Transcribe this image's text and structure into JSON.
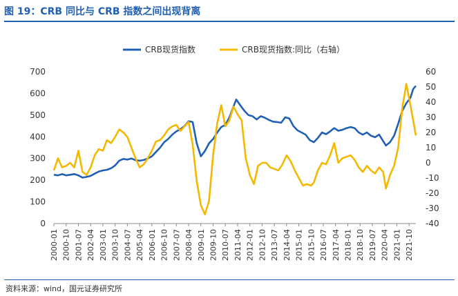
{
  "header": {
    "title": "图 19：CRB 同比与 CRB 指数之间出现背离"
  },
  "footer": {
    "source": "资料来源：wind，国元证券研究所"
  },
  "colors": {
    "title_blue": "#1f5fb4",
    "series_index": "#1f5fb4",
    "series_yoy": "#f5b800"
  },
  "chart_data": {
    "type": "line",
    "legend_position": "top",
    "grid": false,
    "x_tick_labels": [
      "2000-01",
      "2000-10",
      "2001-07",
      "2002-04",
      "2003-01",
      "2003-10",
      "2004-07",
      "2005-04",
      "2006-01",
      "2006-10",
      "2007-07",
      "2008-04",
      "2009-01",
      "2009-10",
      "2010-07",
      "2011-04",
      "2012-01",
      "2012-10",
      "2013-07",
      "2014-04",
      "2015-01",
      "2015-10",
      "2016-07",
      "2017-04",
      "2018-01",
      "2018-10",
      "2019-07",
      "2020-04",
      "2021-01",
      "2021-10"
    ],
    "x_range": [
      "2000-01",
      "2022-03"
    ],
    "y_left": {
      "min": 0,
      "max": 700,
      "ticks": [
        0,
        100,
        200,
        300,
        400,
        500,
        600,
        700
      ]
    },
    "y_right": {
      "min": -40,
      "max": 60,
      "ticks": [
        -40,
        -30,
        -20,
        -10,
        0,
        10,
        20,
        30,
        40,
        50,
        60
      ]
    },
    "series": [
      {
        "name": "CRB现货指数",
        "axis": "left",
        "color": "#1f5fb4",
        "points": [
          [
            "2000-01",
            225
          ],
          [
            "2000-04",
            222
          ],
          [
            "2000-07",
            228
          ],
          [
            "2000-10",
            222
          ],
          [
            "2001-01",
            225
          ],
          [
            "2001-04",
            228
          ],
          [
            "2001-07",
            222
          ],
          [
            "2001-10",
            212
          ],
          [
            "2002-01",
            215
          ],
          [
            "2002-04",
            220
          ],
          [
            "2002-07",
            230
          ],
          [
            "2002-10",
            240
          ],
          [
            "2003-01",
            245
          ],
          [
            "2003-04",
            248
          ],
          [
            "2003-07",
            255
          ],
          [
            "2003-10",
            268
          ],
          [
            "2004-01",
            290
          ],
          [
            "2004-04",
            298
          ],
          [
            "2004-07",
            295
          ],
          [
            "2004-10",
            300
          ],
          [
            "2005-01",
            292
          ],
          [
            "2005-04",
            290
          ],
          [
            "2005-07",
            293
          ],
          [
            "2005-10",
            300
          ],
          [
            "2006-01",
            310
          ],
          [
            "2006-04",
            330
          ],
          [
            "2006-07",
            350
          ],
          [
            "2006-10",
            375
          ],
          [
            "2007-01",
            390
          ],
          [
            "2007-04",
            410
          ],
          [
            "2007-07",
            425
          ],
          [
            "2007-10",
            435
          ],
          [
            "2008-01",
            450
          ],
          [
            "2008-04",
            472
          ],
          [
            "2008-07",
            468
          ],
          [
            "2008-10",
            370
          ],
          [
            "2009-01",
            310
          ],
          [
            "2009-04",
            335
          ],
          [
            "2009-07",
            370
          ],
          [
            "2009-10",
            390
          ],
          [
            "2010-01",
            420
          ],
          [
            "2010-04",
            445
          ],
          [
            "2010-07",
            455
          ],
          [
            "2010-10",
            490
          ],
          [
            "2011-01",
            540
          ],
          [
            "2011-03",
            572
          ],
          [
            "2011-06",
            545
          ],
          [
            "2011-09",
            520
          ],
          [
            "2011-12",
            500
          ],
          [
            "2012-03",
            495
          ],
          [
            "2012-06",
            480
          ],
          [
            "2012-09",
            495
          ],
          [
            "2012-12",
            488
          ],
          [
            "2013-03",
            478
          ],
          [
            "2013-06",
            470
          ],
          [
            "2013-09",
            468
          ],
          [
            "2013-12",
            465
          ],
          [
            "2014-03",
            490
          ],
          [
            "2014-06",
            485
          ],
          [
            "2014-09",
            450
          ],
          [
            "2014-12",
            430
          ],
          [
            "2015-03",
            420
          ],
          [
            "2015-06",
            410
          ],
          [
            "2015-09",
            385
          ],
          [
            "2015-12",
            375
          ],
          [
            "2016-03",
            395
          ],
          [
            "2016-06",
            420
          ],
          [
            "2016-09",
            412
          ],
          [
            "2016-12",
            425
          ],
          [
            "2017-03",
            440
          ],
          [
            "2017-06",
            428
          ],
          [
            "2017-09",
            432
          ],
          [
            "2017-12",
            440
          ],
          [
            "2018-03",
            445
          ],
          [
            "2018-06",
            440
          ],
          [
            "2018-09",
            420
          ],
          [
            "2018-12",
            410
          ],
          [
            "2019-03",
            420
          ],
          [
            "2019-06",
            405
          ],
          [
            "2019-09",
            398
          ],
          [
            "2019-12",
            410
          ],
          [
            "2020-03",
            380
          ],
          [
            "2020-05",
            360
          ],
          [
            "2020-08",
            375
          ],
          [
            "2020-11",
            405
          ],
          [
            "2021-02",
            460
          ],
          [
            "2021-05",
            520
          ],
          [
            "2021-08",
            555
          ],
          [
            "2021-11",
            580
          ],
          [
            "2022-01",
            620
          ],
          [
            "2022-03",
            635
          ]
        ]
      },
      {
        "name": "CRB现货指数:同比（右轴）",
        "axis": "right",
        "color": "#f5b800",
        "points": [
          [
            "2000-01",
            -5
          ],
          [
            "2000-04",
            3
          ],
          [
            "2000-07",
            -3
          ],
          [
            "2000-10",
            -2
          ],
          [
            "2001-01",
            0
          ],
          [
            "2001-04",
            -3
          ],
          [
            "2001-07",
            8
          ],
          [
            "2001-10",
            -6
          ],
          [
            "2002-01",
            -8
          ],
          [
            "2002-04",
            -3
          ],
          [
            "2002-07",
            5
          ],
          [
            "2002-10",
            9
          ],
          [
            "2003-01",
            8
          ],
          [
            "2003-04",
            15
          ],
          [
            "2003-07",
            13
          ],
          [
            "2003-10",
            17
          ],
          [
            "2004-01",
            22
          ],
          [
            "2004-04",
            20
          ],
          [
            "2004-07",
            17
          ],
          [
            "2004-10",
            10
          ],
          [
            "2005-01",
            3
          ],
          [
            "2005-04",
            -3
          ],
          [
            "2005-07",
            -1
          ],
          [
            "2005-10",
            3
          ],
          [
            "2006-01",
            8
          ],
          [
            "2006-04",
            14
          ],
          [
            "2006-07",
            15
          ],
          [
            "2006-10",
            18
          ],
          [
            "2007-01",
            22
          ],
          [
            "2007-04",
            24
          ],
          [
            "2007-07",
            25
          ],
          [
            "2007-10",
            21
          ],
          [
            "2008-01",
            24
          ],
          [
            "2008-04",
            27
          ],
          [
            "2008-07",
            12
          ],
          [
            "2008-10",
            -12
          ],
          [
            "2009-01",
            -28
          ],
          [
            "2009-04",
            -34
          ],
          [
            "2009-07",
            -25
          ],
          [
            "2009-10",
            5
          ],
          [
            "2010-01",
            26
          ],
          [
            "2010-04",
            38
          ],
          [
            "2010-07",
            24
          ],
          [
            "2010-10",
            28
          ],
          [
            "2011-01",
            37
          ],
          [
            "2011-04",
            32
          ],
          [
            "2011-07",
            28
          ],
          [
            "2011-10",
            3
          ],
          [
            "2012-01",
            -8
          ],
          [
            "2012-04",
            -14
          ],
          [
            "2012-07",
            -2
          ],
          [
            "2012-10",
            0
          ],
          [
            "2013-01",
            0
          ],
          [
            "2013-04",
            -3
          ],
          [
            "2013-07",
            -4
          ],
          [
            "2013-10",
            -5
          ],
          [
            "2014-01",
            -1
          ],
          [
            "2014-04",
            5
          ],
          [
            "2014-07",
            1
          ],
          [
            "2014-10",
            -5
          ],
          [
            "2015-01",
            -10
          ],
          [
            "2015-04",
            -15
          ],
          [
            "2015-07",
            -14
          ],
          [
            "2015-10",
            -15
          ],
          [
            "2015-12",
            -13
          ],
          [
            "2016-03",
            -5
          ],
          [
            "2016-06",
            0
          ],
          [
            "2016-09",
            -1
          ],
          [
            "2016-12",
            5
          ],
          [
            "2017-03",
            13
          ],
          [
            "2017-06",
            0
          ],
          [
            "2017-09",
            3
          ],
          [
            "2017-12",
            4
          ],
          [
            "2018-03",
            5
          ],
          [
            "2018-06",
            2
          ],
          [
            "2018-09",
            -3
          ],
          [
            "2018-12",
            -6
          ],
          [
            "2019-03",
            -2
          ],
          [
            "2019-06",
            -5
          ],
          [
            "2019-09",
            -7
          ],
          [
            "2019-12",
            -3
          ],
          [
            "2020-03",
            -6
          ],
          [
            "2020-05",
            -17
          ],
          [
            "2020-08",
            -8
          ],
          [
            "2020-11",
            -2
          ],
          [
            "2021-02",
            10
          ],
          [
            "2021-05",
            36
          ],
          [
            "2021-08",
            52
          ],
          [
            "2021-11",
            38
          ],
          [
            "2022-01",
            28
          ],
          [
            "2022-03",
            18
          ]
        ]
      }
    ]
  }
}
